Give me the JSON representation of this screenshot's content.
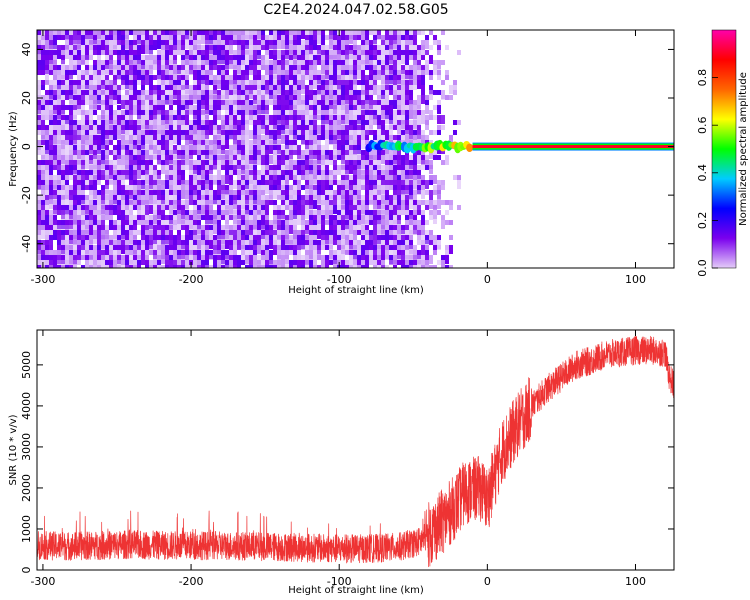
{
  "title": "C2E4.2024.047.02.58.G05",
  "chart_data": [
    {
      "type": "heatmap",
      "xlabel": "Height of straight line (km)",
      "ylabel": "Frequency (Hz)",
      "xlim": [
        -304,
        126
      ],
      "ylim": [
        -50,
        48
      ],
      "xticks": [
        -300,
        -200,
        -100,
        0,
        100
      ],
      "yticks": [
        -40,
        -20,
        0,
        20,
        40
      ],
      "colorbar": {
        "label": "Normalized spectral amplitude",
        "range": [
          0,
          1
        ],
        "ticks": [
          0.0,
          0.2,
          0.4,
          0.6,
          0.8
        ],
        "colors": [
          "#e4ccf8",
          "#7a00ee",
          "#0000ff",
          "#00ccff",
          "#00ff00",
          "#ffff00",
          "#ff6600",
          "#ff0000",
          "#ff00aa"
        ]
      },
      "noise_region": {
        "x_range": [
          -304,
          -50
        ],
        "mean_amplitude": 0.1
      },
      "signal_line": {
        "frequency": 0,
        "x_range": [
          -80,
          126
        ],
        "amplitude_start": 0.3,
        "amplitude_end": 0.9
      }
    },
    {
      "type": "line",
      "xlabel": "Height of straight line (km)",
      "ylabel": "SNR (10 * v/v)",
      "xlim": [
        -304,
        126
      ],
      "ylim": [
        0,
        5850
      ],
      "xticks": [
        -300,
        -200,
        -100,
        0,
        100
      ],
      "yticks": [
        0,
        1000,
        2000,
        3000,
        4000,
        5000
      ],
      "color": "#ee3333",
      "series": [
        {
          "x": [
            -304,
            -280,
            -260,
            -240,
            -220,
            -200,
            -180,
            -160,
            -140,
            -120,
            -100,
            -80,
            -60,
            -45,
            -35,
            -25,
            -15,
            -5,
            0,
            5,
            10,
            20,
            30,
            40,
            50,
            60,
            70,
            80,
            90,
            100,
            110,
            120,
            123,
            126
          ],
          "values": [
            600,
            580,
            600,
            620,
            600,
            600,
            590,
            580,
            560,
            540,
            520,
            520,
            560,
            700,
            1000,
            1400,
            1900,
            2000,
            1700,
            2300,
            2900,
            3500,
            4000,
            4400,
            4700,
            5000,
            5100,
            5250,
            5300,
            5350,
            5350,
            5300,
            4700,
            4500
          ]
        }
      ]
    }
  ]
}
